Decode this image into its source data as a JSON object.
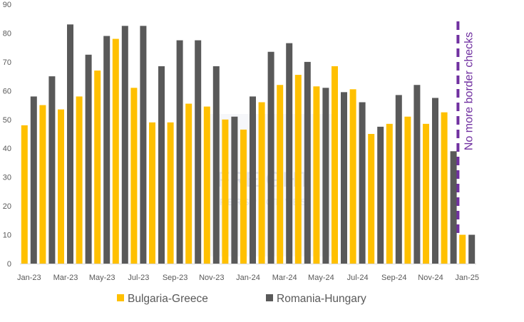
{
  "chart_data": {
    "type": "bar",
    "title": "",
    "xlabel": "",
    "ylabel": "",
    "ylim": [
      0,
      90
    ],
    "yticks": [
      0,
      10,
      20,
      30,
      40,
      50,
      60,
      70,
      80,
      90
    ],
    "categories": [
      "Jan-23",
      "Feb-23",
      "Mar-23",
      "Apr-23",
      "May-23",
      "Jun-23",
      "Jul-23",
      "Aug-23",
      "Sep-23",
      "Oct-23",
      "Nov-23",
      "Dec-23",
      "Jan-24",
      "Feb-24",
      "Mar-24",
      "Apr-24",
      "May-24",
      "Jun-24",
      "Jul-24",
      "Aug-24",
      "Sep-24",
      "Oct-24",
      "Nov-24",
      "Dec-24",
      "Jan-25"
    ],
    "xtick_labels": [
      "Jan-23",
      "Mar-23",
      "May-23",
      "Jul-23",
      "Sep-23",
      "Nov-23",
      "Jan-24",
      "Mar-24",
      "May-24",
      "Jul-24",
      "Sep-24",
      "Nov-24",
      "Jan-25"
    ],
    "series": [
      {
        "name": "Bulgaria-Greece",
        "color": "#FFC000",
        "values": [
          48,
          55,
          53.5,
          58,
          67,
          78,
          61,
          49,
          49,
          55.5,
          54.5,
          50,
          46.5,
          56,
          62,
          65.5,
          61.5,
          68.5,
          60.5,
          45,
          48.5,
          51,
          48.5,
          52.5,
          10
        ]
      },
      {
        "name": "Romania-Hungary",
        "color": "#595959",
        "values": [
          58,
          65,
          83,
          72.5,
          79,
          82.5,
          82.5,
          68.5,
          77.5,
          77.5,
          68.5,
          51,
          58,
          73.5,
          76.5,
          70,
          61,
          59.5,
          56,
          47.5,
          58.5,
          62,
          57.5,
          39,
          10
        ]
      }
    ],
    "annotations": [
      {
        "text": "No more border checks",
        "position_category_index": 23.5,
        "style": "dashed-vertical-line",
        "color": "#7030A0"
      }
    ],
    "legend": {
      "placement": "bottom-center",
      "entries": [
        "Bulgaria-Greece",
        "Romania-Hungary"
      ]
    },
    "watermark": {
      "text_main": "FREIGHT",
      "text_sub": "PERSPECTIVES"
    },
    "grid": false
  }
}
